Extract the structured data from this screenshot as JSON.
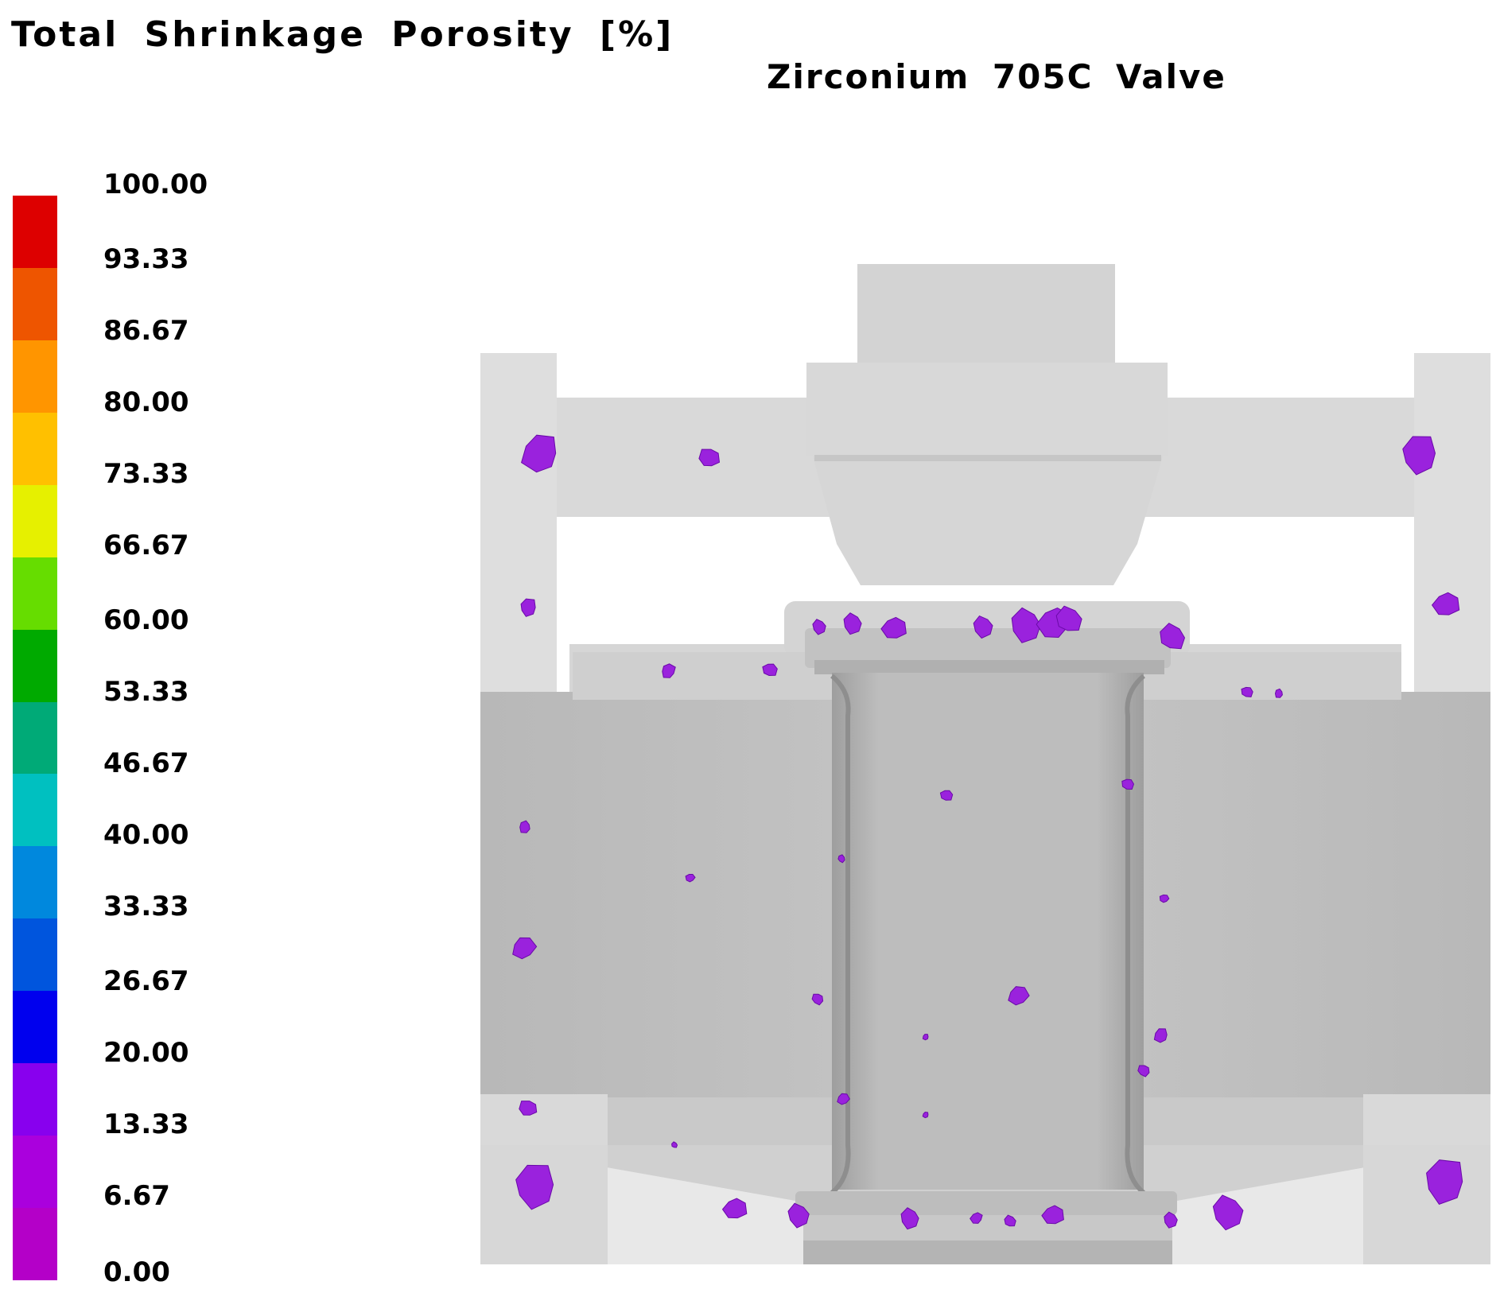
{
  "title": "Total Shrinkage Porosity [%]",
  "subtitle": "Zirconium 705C Valve",
  "legend": {
    "labels": [
      "100.00",
      "93.33",
      "86.67",
      "80.00",
      "73.33",
      "66.67",
      "60.00",
      "53.33",
      "46.67",
      "40.00",
      "33.33",
      "26.67",
      "20.00",
      "13.33",
      "6.67",
      "0.00"
    ],
    "colors": [
      "#dd0000",
      "#ee5500",
      "#ff9500",
      "#ffc000",
      "#e6f000",
      "#66dd00",
      "#00aa00",
      "#00aa77",
      "#00c0c0",
      "#0088dd",
      "#0055dd",
      "#0000ee",
      "#8800ee",
      "#aa00dd",
      "#b400c8"
    ],
    "porosity_color": "#9a22dd"
  }
}
